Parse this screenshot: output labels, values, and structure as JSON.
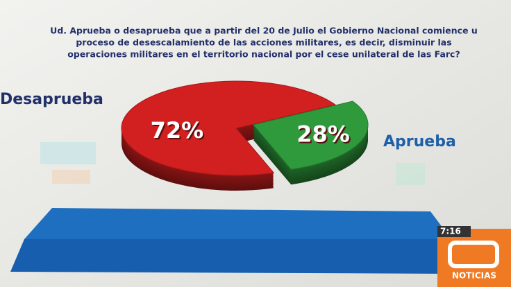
{
  "chart_data": {
    "type": "pie",
    "title": [
      "Ud. Aprueba o desaprueba que a partir del 20 de Julio el Gobierno Nacional comience u",
      "proceso de desescalamiento de las acciones militares, es decir, disminuir las",
      "operaciones militares en el territorio nacional por el cese unilateral de las Farc?"
    ],
    "categories": [
      "Desaprueba",
      "Aprueba"
    ],
    "values": [
      72,
      28
    ],
    "value_labels": [
      "72%",
      "28%"
    ],
    "colors": [
      "#d21f1f",
      "#2f9a3c"
    ]
  },
  "overlay": {
    "clock": "7:16",
    "logo": "NOTICIAS"
  }
}
